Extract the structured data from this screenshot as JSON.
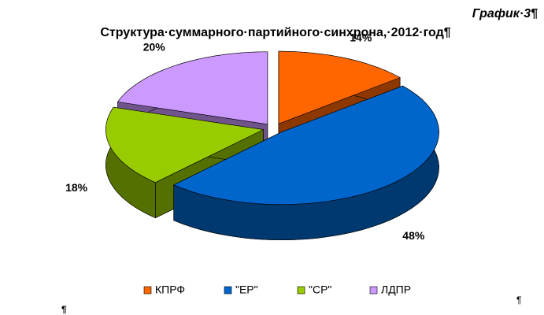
{
  "chart_data": {
    "type": "pie3d",
    "title": "Структура·суммарного·партийного·синхрона,·2012·год¶",
    "annotations": [
      "График·3¶",
      "¶",
      "¶"
    ],
    "categories": [
      "КПРФ",
      "\"ЕР\"",
      "\"СР\"",
      "ЛДПР"
    ],
    "values": [
      14,
      48,
      18,
      20
    ],
    "value_labels": [
      "14%",
      "48%",
      "18%",
      "20%"
    ],
    "colors": [
      "#ff6600",
      "#0066cc",
      "#99cc00",
      "#cc99ff"
    ],
    "legend": "bottom"
  }
}
